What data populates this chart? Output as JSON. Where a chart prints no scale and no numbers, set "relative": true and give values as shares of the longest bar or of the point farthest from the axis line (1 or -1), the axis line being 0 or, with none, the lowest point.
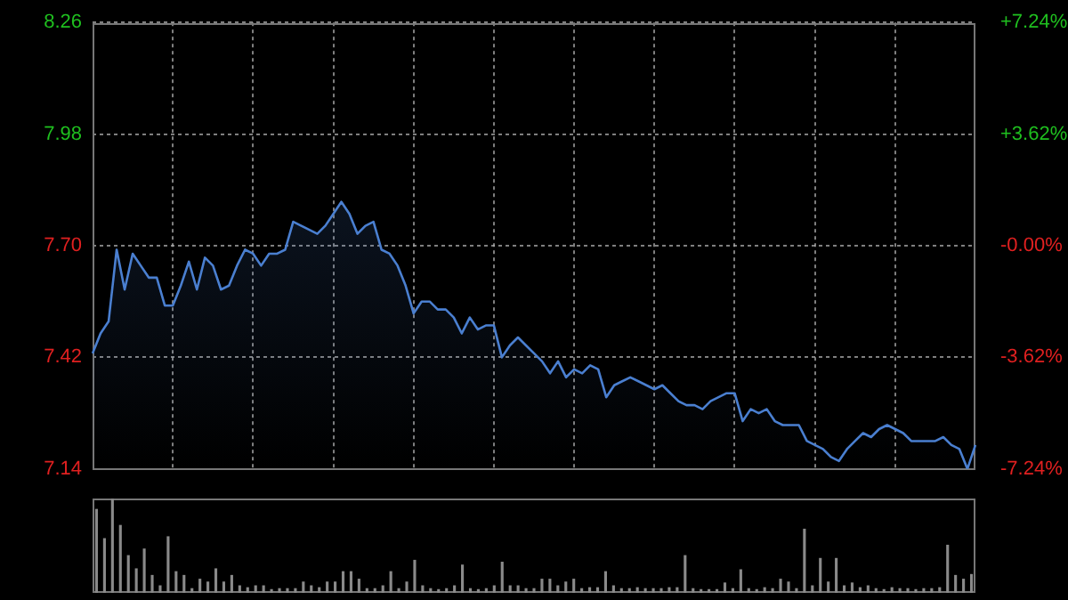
{
  "chart_data": [
    {
      "type": "area",
      "categories": [
        null,
        null,
        null,
        null,
        null,
        null,
        null,
        null,
        null,
        null,
        null,
        null,
        null,
        null,
        null,
        null,
        null,
        null,
        null,
        null,
        null,
        null,
        null,
        null,
        null,
        null,
        null,
        null,
        null,
        null,
        null,
        null,
        null,
        null,
        null,
        null,
        null,
        null,
        null,
        null,
        null,
        null,
        null,
        null,
        null,
        null,
        null,
        null,
        null,
        null,
        null,
        null,
        null,
        null,
        null,
        null,
        null,
        null,
        null,
        null,
        null,
        null,
        null,
        null,
        null,
        null,
        null,
        null,
        null,
        null,
        null,
        null,
        null,
        null,
        null,
        null,
        null,
        null,
        null,
        null,
        null,
        null,
        null,
        null,
        null,
        null,
        null,
        null,
        null,
        null,
        null,
        null,
        null,
        null,
        null,
        null,
        null,
        null,
        null,
        null,
        null,
        null,
        null,
        null,
        null,
        null,
        null,
        null,
        null,
        null,
        null
      ],
      "series": [
        {
          "color": "#4a7fd0",
          "values": [
            7.43,
            7.48,
            7.51,
            7.69,
            7.59,
            7.68,
            7.65,
            7.62,
            7.62,
            7.55,
            7.55,
            7.6,
            7.66,
            7.59,
            7.67,
            7.65,
            7.59,
            7.6,
            7.65,
            7.69,
            7.68,
            7.65,
            7.68,
            7.68,
            7.69,
            7.76,
            7.75,
            7.74,
            7.73,
            7.75,
            7.78,
            7.81,
            7.78,
            7.73,
            7.75,
            7.76,
            7.69,
            7.68,
            7.65,
            7.6,
            7.53,
            7.56,
            7.56,
            7.54,
            7.54,
            7.52,
            7.48,
            7.52,
            7.49,
            7.5,
            7.5,
            7.42,
            7.45,
            7.47,
            7.45,
            7.43,
            7.41,
            7.38,
            7.41,
            7.37,
            7.39,
            7.38,
            7.4,
            7.39,
            7.32,
            7.35,
            7.36,
            7.37,
            7.36,
            7.35,
            7.34,
            7.35,
            7.33,
            7.31,
            7.3,
            7.3,
            7.29,
            7.31,
            7.32,
            7.33,
            7.33,
            7.26,
            7.29,
            7.28,
            7.29,
            7.26,
            7.25,
            7.25,
            7.25,
            7.21,
            7.2,
            7.19,
            7.17,
            7.16,
            7.19,
            7.21,
            7.23,
            7.22,
            7.24,
            7.25,
            7.24,
            7.23,
            7.21,
            7.21,
            7.21,
            7.21,
            7.22,
            7.2,
            7.19,
            7.14,
            7.2
          ]
        }
      ],
      "ylim": [
        7.14,
        8.26
      ],
      "yticks": [
        7.14,
        7.42,
        {
          "value": 7.7,
          "label": "7.70"
        },
        7.98,
        8.26
      ],
      "y2lim": [
        -7.24,
        7.24
      ],
      "y2ticks": [
        {
          "value": -7.24,
          "label": "-7.24%"
        },
        {
          "value": -3.62,
          "label": "-3.62%"
        },
        {
          "value": 0,
          "label": "-0.00%"
        },
        {
          "value": 3.62,
          "label": "+3.62%"
        },
        {
          "value": 7.24,
          "label": "+7.24%"
        }
      ],
      "tick_labels": "y",
      "grid": true,
      "legend": false,
      "marker": "none",
      "line_style": "solid"
    },
    {
      "type": "bar",
      "relative": true,
      "tick_labels": false,
      "legend": false,
      "categories": [
        null,
        null,
        null,
        null,
        null,
        null,
        null,
        null,
        null,
        null,
        null,
        null,
        null,
        null,
        null,
        null,
        null,
        null,
        null,
        null,
        null,
        null,
        null,
        null,
        null,
        null,
        null,
        null,
        null,
        null,
        null,
        null,
        null,
        null,
        null,
        null,
        null,
        null,
        null,
        null,
        null,
        null,
        null,
        null,
        null,
        null,
        null,
        null,
        null,
        null,
        null,
        null,
        null,
        null,
        null,
        null,
        null,
        null,
        null,
        null,
        null,
        null,
        null,
        null,
        null,
        null,
        null,
        null,
        null,
        null,
        null,
        null,
        null,
        null,
        null,
        null,
        null,
        null,
        null,
        null,
        null,
        null,
        null,
        null,
        null,
        null,
        null,
        null,
        null,
        null,
        null,
        null,
        null,
        null,
        null,
        null,
        null,
        null,
        null,
        null,
        null,
        null,
        null,
        null,
        null,
        null,
        null,
        null,
        null,
        null,
        null
      ],
      "series": [
        {
          "color": "#8a8a8a",
          "values": [
            0.89,
            0.58,
            1.0,
            0.72,
            0.4,
            0.26,
            0.47,
            0.19,
            0.08,
            0.6,
            0.23,
            0.19,
            0.05,
            0.15,
            0.12,
            0.26,
            0.12,
            0.19,
            0.08,
            0.06,
            0.08,
            0.08,
            0.04,
            0.05,
            0.05,
            0.05,
            0.12,
            0.08,
            0.06,
            0.12,
            0.12,
            0.23,
            0.23,
            0.15,
            0.05,
            0.05,
            0.08,
            0.23,
            0.05,
            0.12,
            0.35,
            0.08,
            0.05,
            0.04,
            0.05,
            0.08,
            0.3,
            0.05,
            0.04,
            0.05,
            0.08,
            0.33,
            0.08,
            0.08,
            0.05,
            0.05,
            0.15,
            0.15,
            0.08,
            0.12,
            0.15,
            0.05,
            0.06,
            0.06,
            0.23,
            0.08,
            0.05,
            0.05,
            0.06,
            0.05,
            0.05,
            0.05,
            0.06,
            0.06,
            0.4,
            0.05,
            0.04,
            0.04,
            0.04,
            0.11,
            0.05,
            0.25,
            0.05,
            0.04,
            0.06,
            0.05,
            0.15,
            0.12,
            0.05,
            0.68,
            0.08,
            0.37,
            0.12,
            0.37,
            0.08,
            0.11,
            0.06,
            0.08,
            0.05,
            0.04,
            0.06,
            0.05,
            0.05,
            0.04,
            0.05,
            0.05,
            0.06,
            0.51,
            0.19,
            0.15,
            0.2
          ]
        }
      ]
    }
  ]
}
